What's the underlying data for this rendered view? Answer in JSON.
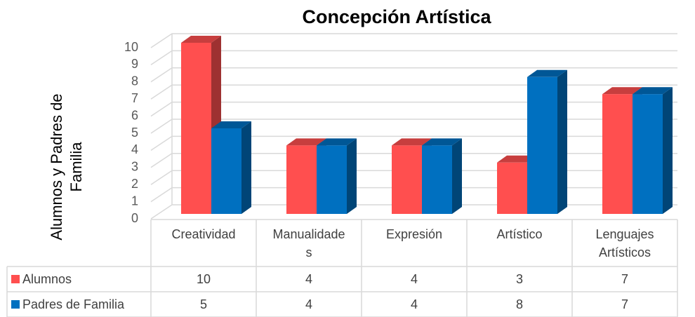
{
  "chart_data": {
    "type": "bar3d",
    "title": "Concepción Artística",
    "y_label": "Alumnos y Padres de Familia",
    "categories": [
      "Creatividad",
      "Manualidades",
      "Expresión",
      "Artístico",
      "Lenguajes Artísticos"
    ],
    "series": [
      {
        "name": "Alumnos",
        "color": "#ff4f4f",
        "values": [
          10,
          4,
          4,
          3,
          7
        ]
      },
      {
        "name": "Padres de Familia",
        "color": "#0070c0",
        "values": [
          5,
          4,
          4,
          8,
          7
        ]
      }
    ],
    "ylim": [
      0,
      10
    ],
    "yticks": [
      0,
      1,
      2,
      3,
      4,
      5,
      6,
      7,
      8,
      9,
      10
    ],
    "grid": true
  }
}
